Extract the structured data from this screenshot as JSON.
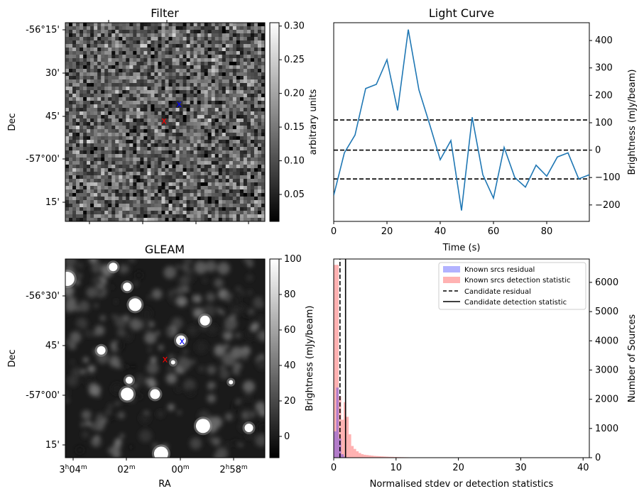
{
  "chart_data": [
    {
      "type": "heatmap",
      "title": "Filter",
      "xlabel": "",
      "ylabel": "Dec",
      "y_ticks": [
        "-56°15'",
        "30'",
        "45'",
        "-57°00'",
        "15'"
      ],
      "colorbar": {
        "label": "arbitrary units",
        "ticks": [
          "0.05",
          "0.10",
          "0.15",
          "0.20",
          "0.25",
          "0.30"
        ],
        "range": [
          0.01,
          0.305
        ]
      },
      "markers": [
        {
          "label": "x",
          "color": "#0000ff",
          "fx": 0.57,
          "fy": 0.41
        },
        {
          "label": "x",
          "color": "#ff0000",
          "fx": 0.495,
          "fy": 0.495
        }
      ]
    },
    {
      "type": "line",
      "title": "Light Curve",
      "xlabel": "Time (s)",
      "ylabel": "Brightness (mJy/beam)",
      "x_ticks": [
        "0",
        "20",
        "40",
        "60",
        "80"
      ],
      "y_ticks": [
        "-200",
        "-100",
        "0",
        "100",
        "200",
        "300",
        "400"
      ],
      "xlim": [
        0,
        96
      ],
      "ylim": [
        -260,
        465
      ],
      "series": [
        {
          "name": "light curve",
          "color": "#1f77b4",
          "x": [
            0,
            4,
            8,
            12,
            16,
            20,
            24,
            28,
            32,
            36,
            40,
            44,
            48,
            52,
            56,
            60,
            64,
            68,
            72,
            76,
            80,
            84,
            88,
            92,
            96
          ],
          "y": [
            -165,
            -10,
            55,
            225,
            240,
            330,
            145,
            440,
            220,
            95,
            -35,
            35,
            -220,
            120,
            -90,
            -175,
            10,
            -100,
            -135,
            -55,
            -95,
            -25,
            -10,
            -105,
            -90
          ]
        }
      ],
      "hlines": [
        {
          "y": 110,
          "style": "dashed"
        },
        {
          "y": 0,
          "style": "dashed"
        },
        {
          "y": -105,
          "style": "dashed"
        }
      ]
    },
    {
      "type": "heatmap",
      "title": "GLEAM",
      "xlabel": "RA",
      "ylabel": "Dec",
      "y_ticks": [
        "-56°30'",
        "45'",
        "-57°00'",
        "15'"
      ],
      "x_ticks": [
        {
          "main": "3",
          "sup1": "h",
          "mid": "04",
          "sup2": "m"
        },
        {
          "main": "02",
          "sup1": "m",
          "mid": "",
          "sup2": ""
        },
        {
          "main": "00",
          "sup1": "m",
          "mid": "",
          "sup2": ""
        },
        {
          "main": "2",
          "sup1": "h",
          "mid": "58",
          "sup2": "m"
        }
      ],
      "colorbar": {
        "label": "Brightness (mJy/beam)",
        "ticks": [
          "0",
          "20",
          "40",
          "60",
          "80",
          "100"
        ],
        "range": [
          -12,
          100
        ]
      },
      "markers": [
        {
          "label": "x",
          "color": "#0000ff",
          "fx": 0.585,
          "fy": 0.415
        },
        {
          "label": "x",
          "color": "#ff0000",
          "fx": 0.5,
          "fy": 0.505
        }
      ]
    },
    {
      "type": "bar",
      "title": "",
      "xlabel": "Normalised stdev or detection statistics",
      "ylabel": "Number of Sources",
      "x_ticks": [
        "0",
        "10",
        "20",
        "30",
        "40"
      ],
      "y_ticks": [
        "0",
        "1000",
        "2000",
        "3000",
        "4000",
        "5000",
        "6000"
      ],
      "xlim": [
        0,
        41
      ],
      "ylim": [
        0,
        6800
      ],
      "bin_width": 0.4,
      "series": [
        {
          "name": "Known srcs residual",
          "color": "#0000ff",
          "alpha": 0.3,
          "counts": [
            900,
            2400,
            650,
            120,
            40,
            15,
            6,
            3
          ]
        },
        {
          "name": "Known srcs detection statistic",
          "color": "#ff0000",
          "alpha": 0.3,
          "counts": [
            6600,
            6600,
            2100,
            1300,
            1900,
            1400,
            800,
            400,
            300,
            220,
            160,
            120,
            100,
            90,
            80,
            70,
            60,
            55,
            50,
            45,
            40,
            35,
            30,
            28,
            25,
            22,
            20,
            18,
            16,
            14,
            12,
            10,
            9,
            8,
            7,
            6,
            6,
            5,
            5,
            4,
            4,
            3,
            3,
            3,
            2,
            2,
            2,
            2,
            2,
            1
          ]
        }
      ],
      "vlines": [
        {
          "name": "Candidate residual",
          "x": 1.0,
          "style": "dashed"
        },
        {
          "name": "Candidate detection statistic",
          "x": 1.9,
          "style": "solid"
        }
      ],
      "legend": "top-right"
    }
  ]
}
